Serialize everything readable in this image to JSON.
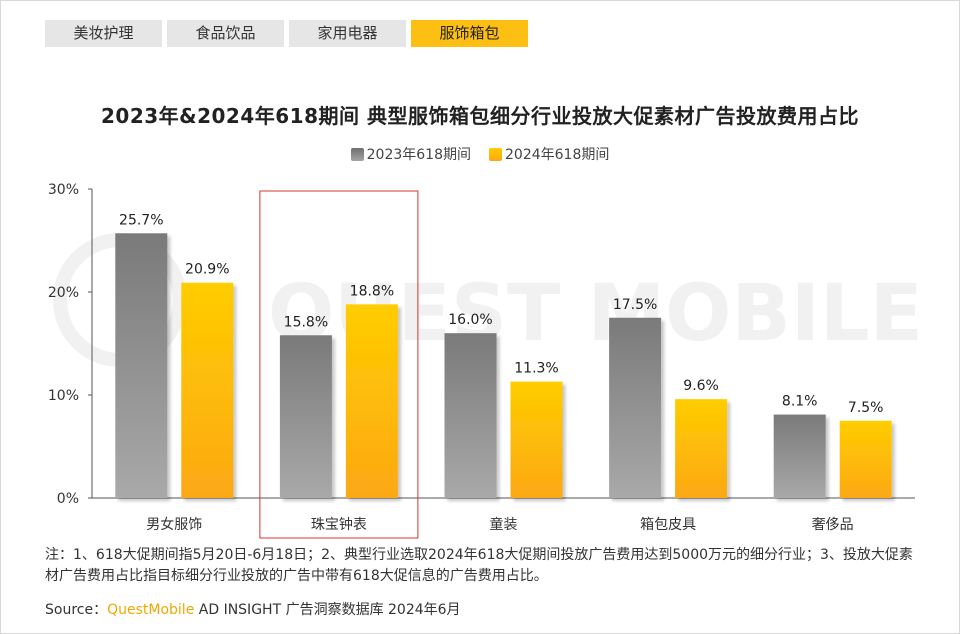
{
  "tabs": [
    {
      "label": "美妆护理",
      "active": false
    },
    {
      "label": "食品饮品",
      "active": false
    },
    {
      "label": "家用电器",
      "active": false
    },
    {
      "label": "服饰箱包",
      "active": true
    }
  ],
  "watermark": "QUEST MOBILE",
  "colors": {
    "series_2023": "#8c8c8c",
    "series_2024": "#fdbf12",
    "highlight_box": "#d9342b",
    "tab_active": "#fdbf12"
  },
  "chart_data": {
    "type": "bar",
    "title": "2023年&2024年618期间 典型服饰箱包细分行业投放大促素材广告投放费用占比",
    "categories": [
      "男女服饰",
      "珠宝钟表",
      "童装",
      "箱包皮具",
      "奢侈品"
    ],
    "series": [
      {
        "name": "2023年618期间",
        "values": [
          25.7,
          15.8,
          16.0,
          17.5,
          8.1
        ],
        "labels": [
          "25.7%",
          "15.8%",
          "16.0%",
          "17.5%",
          "8.1%"
        ]
      },
      {
        "name": "2024年618期间",
        "values": [
          20.9,
          18.8,
          11.3,
          9.6,
          7.5
        ],
        "labels": [
          "20.9%",
          "18.8%",
          "11.3%",
          "9.6%",
          "7.5%"
        ]
      }
    ],
    "ylim": [
      0,
      30
    ],
    "yticks": [
      0,
      10,
      20,
      30
    ],
    "ytick_labels": [
      "0%",
      "10%",
      "20%",
      "30%"
    ],
    "highlight_category": "珠宝钟表",
    "legend_position": "top-center",
    "grid": false
  },
  "notes": "注：1、618大促期间指5月20日-6月18日；2、典型行业选取2024年618大促期间投放广告费用达到5000万元的细分行业；3、投放大促素材广告费用占比指目标细分行业投放的广告中带有618大促信息的广告费用占比。",
  "source": {
    "prefix": "Source：",
    "brand": "QuestMobile",
    "text": " AD INSIGHT 广告洞察数据库 2024年6月"
  }
}
